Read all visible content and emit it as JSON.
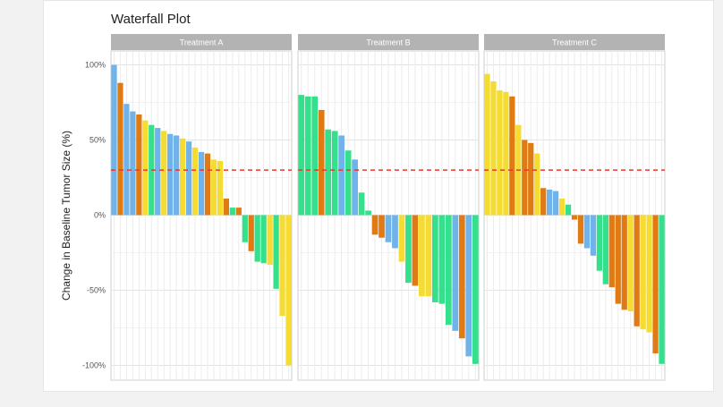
{
  "chart_data": {
    "type": "bar",
    "title": "Waterfall Plot",
    "ylabel": "Change in Baseline Tumor Size (%)",
    "xlabel": "",
    "ylim": [
      -110,
      110
    ],
    "yticks": [
      100,
      50,
      0,
      -50,
      -100
    ],
    "ytick_labels": [
      "100%",
      "50%",
      "0%",
      "-50%",
      "-100%"
    ],
    "reference_line": 30,
    "grid": true,
    "colors": {
      "blue": "#6fb3ea",
      "orange": "#e07b14",
      "green": "#35e08c",
      "yellow": "#f5dc32",
      "reference": "#e8392c",
      "strip": "#b3b3b3"
    },
    "panels": [
      {
        "name": "Treatment A",
        "values": [
          100,
          88,
          74,
          69,
          67,
          63,
          60,
          58,
          56,
          54,
          53,
          51,
          49,
          45,
          42,
          41,
          37,
          36,
          11,
          5,
          5,
          -18,
          -24,
          -31,
          -32,
          -33,
          -49,
          -67,
          -100
        ],
        "colors": [
          "blue",
          "orange",
          "blue",
          "blue",
          "orange",
          "yellow",
          "green",
          "blue",
          "yellow",
          "blue",
          "blue",
          "yellow",
          "blue",
          "yellow",
          "blue",
          "orange",
          "yellow",
          "yellow",
          "orange",
          "green",
          "orange",
          "green",
          "orange",
          "green",
          "green",
          "yellow",
          "green",
          "yellow",
          "yellow"
        ]
      },
      {
        "name": "Treatment B",
        "values": [
          80,
          79,
          79,
          70,
          57,
          56,
          53,
          43,
          37,
          15,
          3,
          -13,
          -15,
          -18,
          -22,
          -31,
          -45,
          -47,
          -54,
          -54,
          -58,
          -59,
          -73,
          -77,
          -82,
          -94,
          -99
        ],
        "colors": [
          "green",
          "green",
          "green",
          "orange",
          "green",
          "green",
          "blue",
          "green",
          "blue",
          "green",
          "green",
          "orange",
          "orange",
          "blue",
          "blue",
          "yellow",
          "green",
          "orange",
          "yellow",
          "yellow",
          "green",
          "green",
          "green",
          "blue",
          "orange",
          "blue",
          "green"
        ]
      },
      {
        "name": "Treatment C",
        "values": [
          94,
          89,
          83,
          82,
          79,
          60,
          50,
          48,
          41,
          18,
          17,
          16,
          11,
          7,
          -3,
          -19,
          -22,
          -27,
          -37,
          -46,
          -48,
          -59,
          -63,
          -64,
          -74,
          -76,
          -78,
          -92,
          -99
        ],
        "colors": [
          "yellow",
          "yellow",
          "yellow",
          "yellow",
          "orange",
          "yellow",
          "orange",
          "orange",
          "yellow",
          "orange",
          "blue",
          "blue",
          "yellow",
          "green",
          "orange",
          "orange",
          "blue",
          "blue",
          "green",
          "green",
          "orange",
          "orange",
          "orange",
          "yellow",
          "orange",
          "yellow",
          "yellow",
          "orange",
          "green"
        ]
      }
    ]
  }
}
